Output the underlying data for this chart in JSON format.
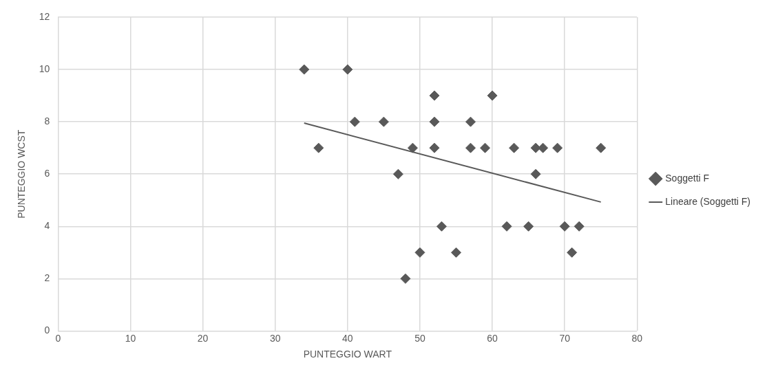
{
  "chart_data": {
    "type": "scatter",
    "xlabel": "PUNTEGGIO WART",
    "ylabel": "PUNTEGGIO WCST",
    "xlim": [
      0,
      80
    ],
    "xticks": [
      0,
      10,
      20,
      30,
      40,
      50,
      60,
      70,
      80
    ],
    "ylim": [
      0,
      12
    ],
    "yticks": [
      0,
      2,
      4,
      6,
      8,
      10,
      12
    ],
    "grid": true,
    "legend": "right",
    "marker": "diamond",
    "series": [
      {
        "name": "Soggetti F",
        "type": "scatter",
        "color": "#595959",
        "x": [
          34,
          40,
          36,
          41,
          45,
          47,
          48,
          49,
          50,
          52,
          52,
          52,
          53,
          55,
          57,
          57,
          59,
          60,
          62,
          63,
          65,
          66,
          66,
          67,
          69,
          70,
          71,
          72,
          75
        ],
        "values": [
          10,
          10,
          7,
          8,
          8,
          6,
          2,
          7,
          3,
          9,
          8,
          7,
          4,
          3,
          8,
          7,
          7,
          9,
          4,
          7,
          4,
          7,
          6,
          7,
          7,
          4,
          3,
          4,
          7
        ]
      },
      {
        "name": "Lineare (Soggetti F)",
        "type": "line",
        "color": "#595959",
        "marker": "none",
        "x": [
          34,
          75
        ],
        "values": [
          7.95,
          4.93
        ]
      }
    ]
  }
}
